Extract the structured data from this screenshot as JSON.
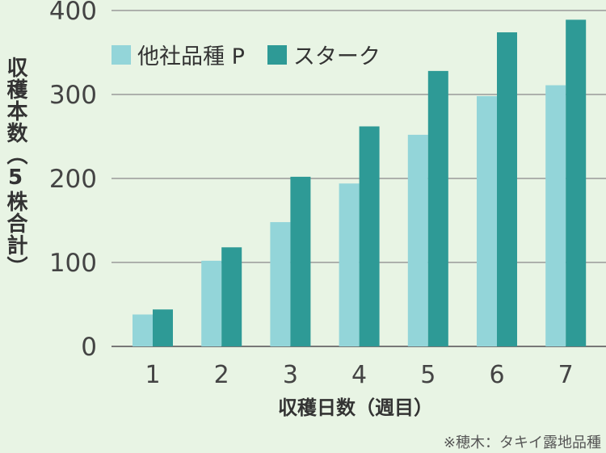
{
  "chart_data": {
    "type": "bar",
    "categories": [
      "1",
      "2",
      "3",
      "4",
      "5",
      "6",
      "7"
    ],
    "series": [
      {
        "name": "他社品種 P",
        "color": "#93d5d9",
        "values": [
          38,
          102,
          148,
          194,
          252,
          298,
          311
        ]
      },
      {
        "name": "スターク",
        "color": "#2e9a96",
        "values": [
          44,
          118,
          202,
          262,
          328,
          374,
          389
        ]
      }
    ],
    "xlabel": "収穫日数（週目）",
    "ylabel": "収穫本数（5株合計）",
    "ylim": [
      0,
      400
    ],
    "yticks": [
      0,
      100,
      200,
      300,
      400
    ],
    "grid": true,
    "legend_position": "top-left",
    "note": "※穂木：タキイ露地品種"
  }
}
